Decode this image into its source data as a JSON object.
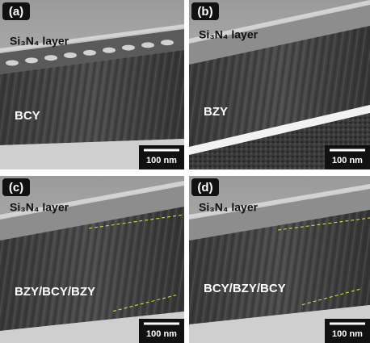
{
  "panels": [
    {
      "label": "(a)",
      "layer_label": "Si₃N₄ layer",
      "film_label": "BCY",
      "scale_bar": "100 nm"
    },
    {
      "label": "(b)",
      "layer_label": "Si₃N₄ layer",
      "film_label": "BZY",
      "scale_bar": "100 nm"
    },
    {
      "label": "(c)",
      "layer_label": "Si₃N₄ layer",
      "film_label": "BZY/BCY/BZY",
      "scale_bar": "100 nm"
    },
    {
      "label": "(d)",
      "layer_label": "Si₃N₄ layer",
      "film_label": "BCY/BZY/BCY",
      "scale_bar": "100 nm"
    }
  ]
}
